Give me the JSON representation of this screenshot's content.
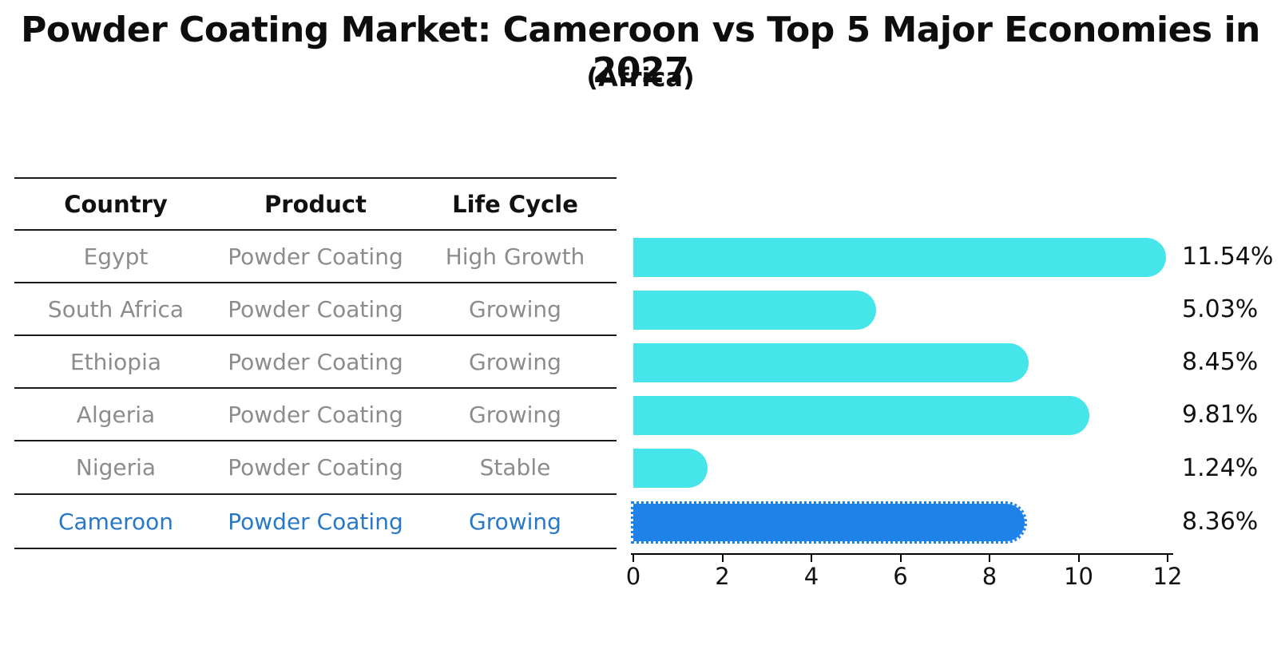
{
  "title": "Powder Coating Market: Cameroon vs Top 5 Major Economies in 2027",
  "subtitle": "(Africa)",
  "table": {
    "headers": [
      "Country",
      "Product",
      "Life Cycle"
    ],
    "rows": [
      {
        "country": "Egypt",
        "product": "Powder Coating",
        "life_cycle": "High Growth",
        "highlight": false
      },
      {
        "country": "South Africa",
        "product": "Powder Coating",
        "life_cycle": "Growing",
        "highlight": false
      },
      {
        "country": "Ethiopia",
        "product": "Powder Coating",
        "life_cycle": "Growing",
        "highlight": false
      },
      {
        "country": "Algeria",
        "product": "Powder Coating",
        "life_cycle": "Growing",
        "highlight": false
      },
      {
        "country": "Nigeria",
        "product": "Powder Coating",
        "life_cycle": "Stable",
        "highlight": false
      },
      {
        "country": "Cameroon",
        "product": "Powder Coating",
        "life_cycle": "Growing",
        "highlight": true
      }
    ]
  },
  "chart_data": {
    "type": "bar",
    "orientation": "horizontal",
    "title": "Powder Coating Market: Cameroon vs Top 5 Major Economies in 2027 (Africa)",
    "categories": [
      "Egypt",
      "South Africa",
      "Ethiopia",
      "Algeria",
      "Nigeria",
      "Cameroon"
    ],
    "values": [
      11.54,
      5.03,
      8.45,
      9.81,
      1.24,
      8.36
    ],
    "value_labels": [
      "11.54%",
      "5.03%",
      "8.45%",
      "9.81%",
      "1.24%",
      "8.36%"
    ],
    "unit": "percent",
    "xlim": [
      0,
      12
    ],
    "x_ticks": [
      0,
      2,
      4,
      6,
      8,
      10,
      12
    ],
    "grid": false,
    "legend": "none",
    "bar_color": "#46E5E9",
    "highlight_color": "#1F82E8",
    "highlight_index": 5
  },
  "colors": {
    "text": "#111111",
    "muted_text": "#8C8C8C",
    "highlight_text": "#2878C8",
    "rule": "#1a1a1a"
  }
}
